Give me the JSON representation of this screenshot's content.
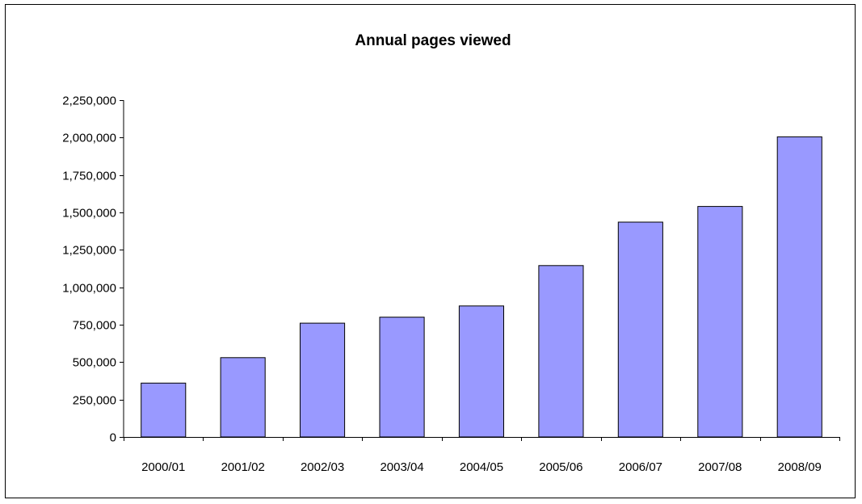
{
  "chart_data": {
    "type": "bar",
    "title": "Annual pages viewed",
    "xlabel": "",
    "ylabel": "",
    "categories": [
      "2000/01",
      "2001/02",
      "2002/03",
      "2003/04",
      "2004/05",
      "2005/06",
      "2006/07",
      "2007/08",
      "2008/09"
    ],
    "values": [
      360000,
      530000,
      760000,
      800000,
      875000,
      1145000,
      1435000,
      1540000,
      2005000
    ],
    "ylim": [
      0,
      2250000
    ],
    "yticks": [
      "0",
      "250,000",
      "500,000",
      "750,000",
      "1,000,000",
      "1,250,000",
      "1,500,000",
      "1,750,000",
      "2,000,000",
      "2,250,000"
    ],
    "grid": false,
    "legend": "none",
    "colors": {
      "bar_fill": "#9999ff",
      "bar_stroke": "#000000",
      "axis": "#000000",
      "background": "#ffffff"
    }
  }
}
